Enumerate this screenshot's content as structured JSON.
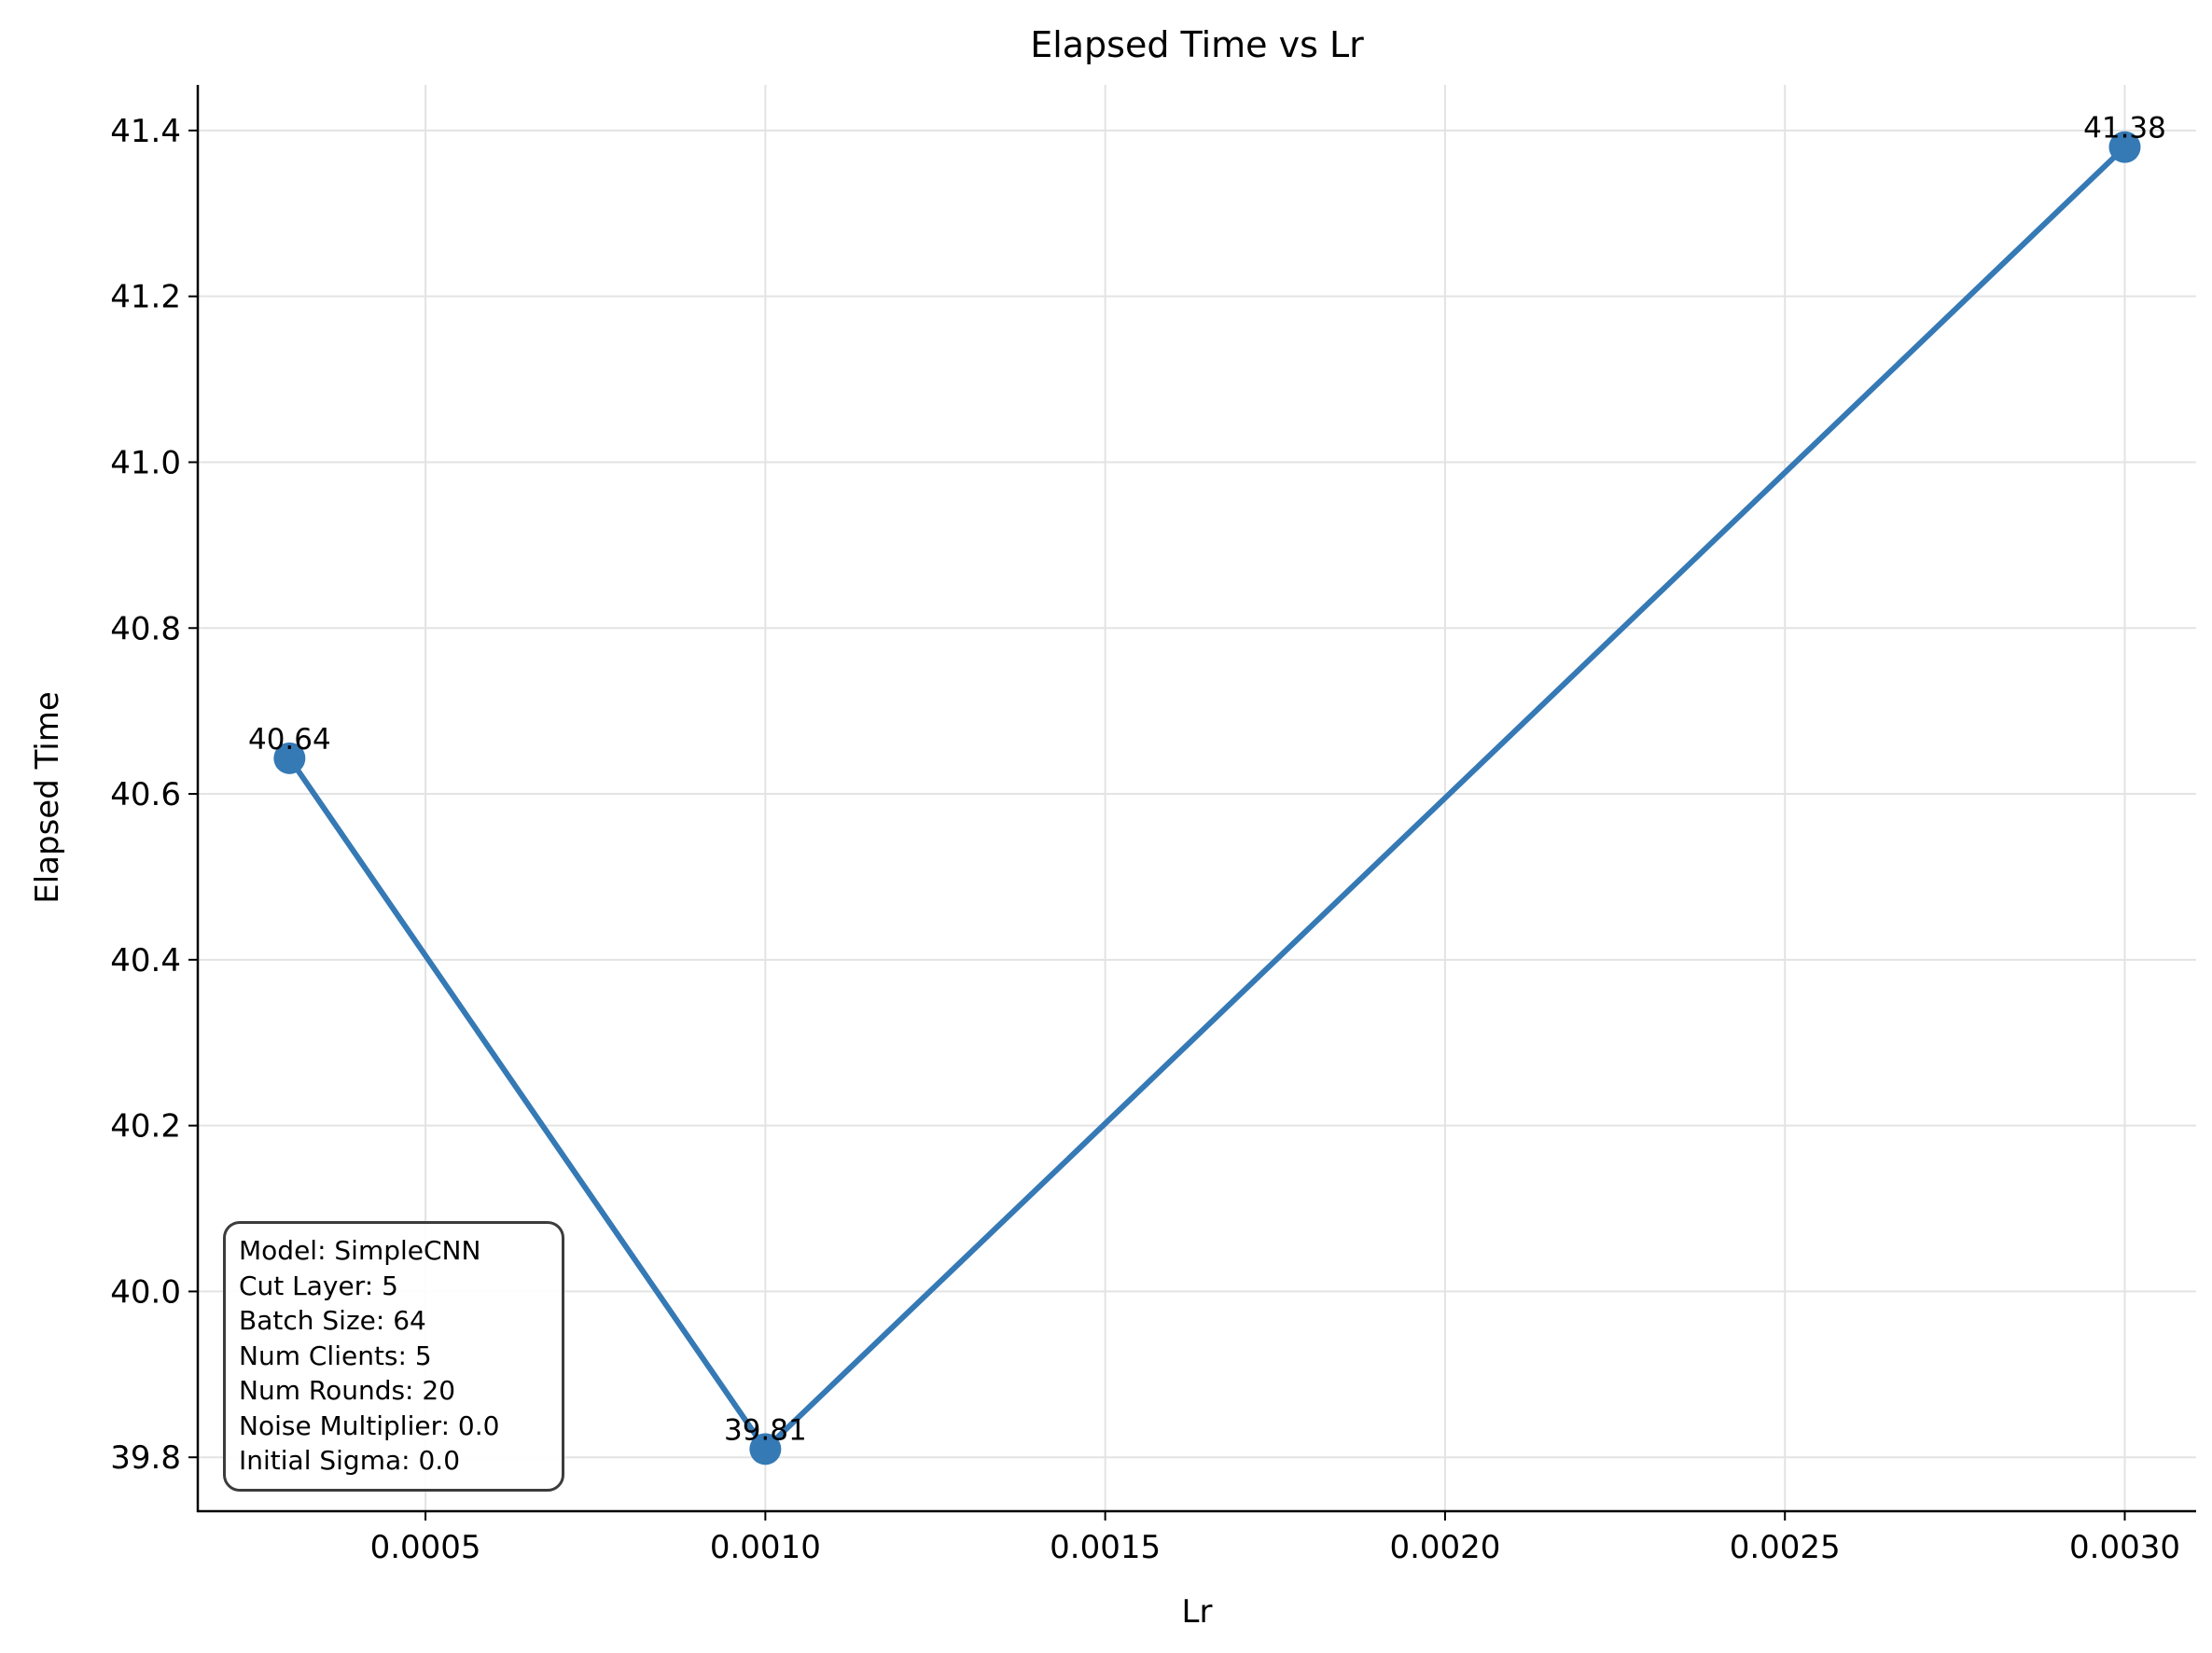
{
  "chart_data": {
    "type": "line",
    "title": "Elapsed Time vs Lr",
    "xlabel": "Lr",
    "ylabel": "Elapsed Time",
    "x": [
      0.0003,
      0.001,
      0.003
    ],
    "series": [
      {
        "values": [
          40.643,
          39.81,
          41.38
        ],
        "labels": [
          "40.64",
          "39.81",
          "41.38"
        ]
      }
    ],
    "xlim": [
      0.000165,
      0.003105
    ],
    "ylim": [
      39.735,
      41.455
    ],
    "xticks": [
      {
        "value": 0.0005,
        "label": "0.0005"
      },
      {
        "value": 0.001,
        "label": "0.0010"
      },
      {
        "value": 0.0015,
        "label": "0.0015"
      },
      {
        "value": 0.002,
        "label": "0.0020"
      },
      {
        "value": 0.0025,
        "label": "0.0025"
      },
      {
        "value": 0.003,
        "label": "0.0030"
      }
    ],
    "yticks": [
      {
        "value": 39.8,
        "label": "39.8"
      },
      {
        "value": 40.0,
        "label": "40.0"
      },
      {
        "value": 40.2,
        "label": "40.2"
      },
      {
        "value": 40.4,
        "label": "40.4"
      },
      {
        "value": 40.6,
        "label": "40.6"
      },
      {
        "value": 40.8,
        "label": "40.8"
      },
      {
        "value": 41.0,
        "label": "41.0"
      },
      {
        "value": 41.2,
        "label": "41.2"
      },
      {
        "value": 41.4,
        "label": "41.4"
      }
    ],
    "grid": true,
    "line_color": "#3579b5",
    "annotation_box": {
      "placement": "bottom-left",
      "lines": [
        "Model: SimpleCNN",
        "Cut Layer: 5",
        "Batch Size: 64",
        "Num Clients: 5",
        "Num Rounds: 20",
        "Noise Multiplier: 0.0",
        "Initial Sigma: 0.0"
      ]
    }
  }
}
